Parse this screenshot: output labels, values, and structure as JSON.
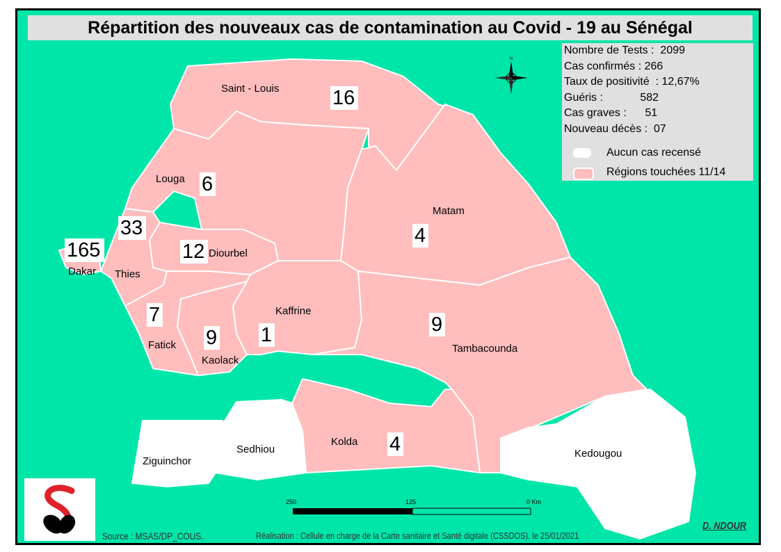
{
  "title": "Répartition des nouveaux  cas de contamination au Covid - 19  au Sénégal",
  "stats": [
    "Nombre de Tests :  2099",
    "Cas confirmés : 266",
    "Taux de positivité  : 12,67%",
    "Guéris :            582",
    "Cas graves :      51",
    "Nouveau décès :  07"
  ],
  "legend": [
    {
      "label": "Aucun cas recensé",
      "color": "#ffffff"
    },
    {
      "label": "Régions touchées 11/14",
      "color": "#FFBDBD"
    }
  ],
  "colors": {
    "background": "#00E6A9",
    "affected": "#FFBDBD",
    "unaffected": "#ffffff",
    "border": "#ffffff"
  },
  "regions": [
    {
      "name": "Saint - Louis",
      "count": "16",
      "affected": true
    },
    {
      "name": "Louga",
      "count": "6",
      "affected": true
    },
    {
      "name": "Thies",
      "count": "33",
      "affected": true
    },
    {
      "name": "Dakar",
      "count": "165",
      "affected": true
    },
    {
      "name": "Diourbel",
      "count": "12",
      "affected": true
    },
    {
      "name": "Matam",
      "count": "4",
      "affected": true
    },
    {
      "name": "Fatick",
      "count": "7",
      "affected": true
    },
    {
      "name": "Kaolack",
      "count": "9",
      "affected": true
    },
    {
      "name": "Kaffrine",
      "count": "1",
      "affected": true
    },
    {
      "name": "Tambacounda",
      "count": "9",
      "affected": true
    },
    {
      "name": "Kolda",
      "count": "4",
      "affected": true
    },
    {
      "name": "Sedhiou",
      "count": "",
      "affected": false
    },
    {
      "name": "Ziguinchor",
      "count": "",
      "affected": false
    },
    {
      "name": "Kedougou",
      "count": "",
      "affected": false
    }
  ],
  "scale": {
    "labels": [
      "250",
      "125",
      "0 Km"
    ]
  },
  "compass_icon": "north-arrow-compass-rose",
  "footer": {
    "source": "Source : MSAS/DP_COUS.",
    "realisation": "Réalisation : Cellule en charge de la Carte sanitaire et Santé digitale (CSSDOS), le 25/01/2021",
    "author": "D. NDOUR"
  }
}
